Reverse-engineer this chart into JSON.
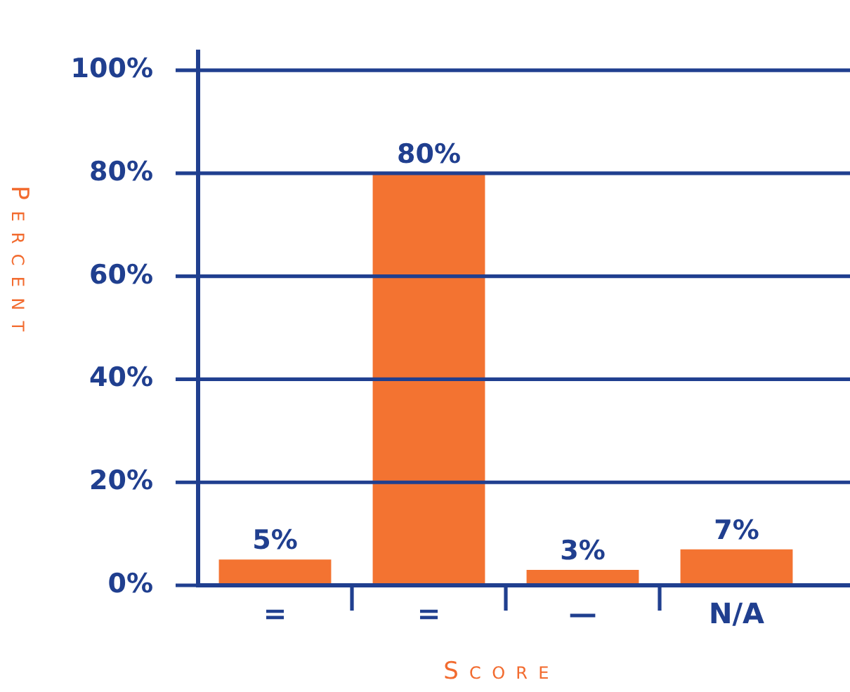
{
  "chart_data": {
    "type": "bar",
    "xlabel": "Score",
    "ylabel": "Percent",
    "categories": [
      "=",
      "=",
      "—",
      "N/A"
    ],
    "values": [
      5,
      80,
      3,
      7
    ],
    "value_labels": [
      "5%",
      "80%",
      "3%",
      "7%"
    ],
    "color": "#f37331",
    "ylim": [
      0,
      104
    ],
    "yticks": [
      {
        "value": 0,
        "label": "0%"
      },
      {
        "value": 20,
        "label": "20%"
      },
      {
        "value": 40,
        "label": "40%"
      },
      {
        "value": 60,
        "label": "60%"
      },
      {
        "value": 80,
        "label": "80%"
      },
      {
        "value": 100,
        "label": "100%"
      }
    ],
    "grid": "y"
  }
}
